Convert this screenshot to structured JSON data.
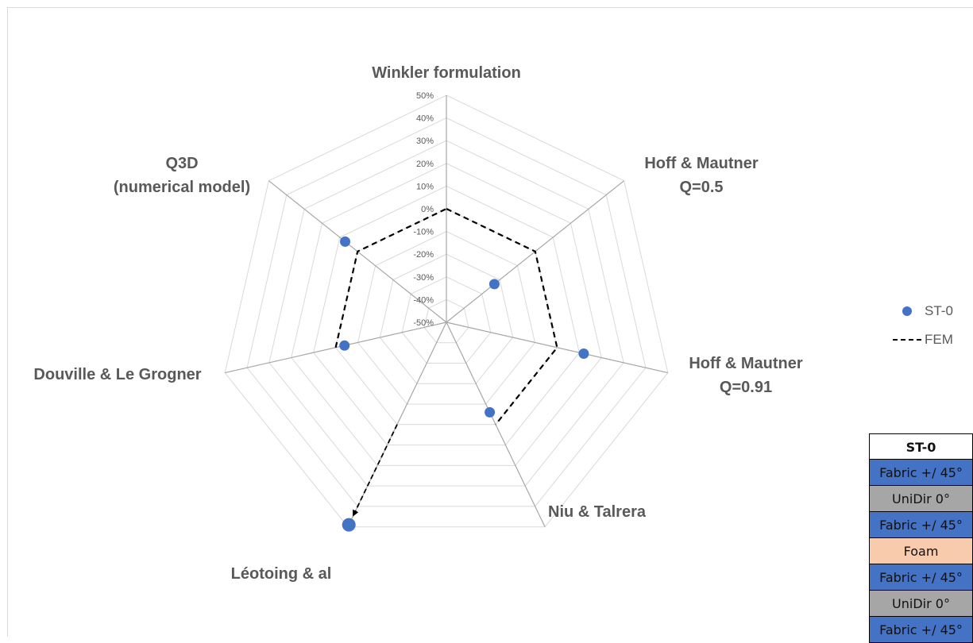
{
  "chart_data": {
    "type": "radar",
    "axes": [
      "Winkler formulation",
      "Hoff & Mautner\nQ=0.5",
      "Hoff & Mautner\nQ=0.91",
      "Niu & Talrera",
      "Léotoing & al",
      "Douville & Le Grogner",
      "Q3D\n(numerical model)"
    ],
    "rlim": [
      -50,
      50
    ],
    "ticks": [
      "50%",
      "40%",
      "30%",
      "20%",
      "10%",
      "0%",
      "-10%",
      "-20%",
      "-30%",
      "-40%",
      "-50%"
    ],
    "tick_values": [
      50,
      40,
      30,
      20,
      10,
      0,
      -10,
      -20,
      -30,
      -40,
      -50
    ],
    "series": [
      {
        "name": "ST-0",
        "style": "markers",
        "color": "#4472c4",
        "values": [
          null,
          -23,
          12,
          -6,
          49,
          -4,
          7
        ]
      },
      {
        "name": "FEM",
        "style": "dashed-line",
        "color": "#000000",
        "values": [
          0,
          0,
          0,
          0,
          null,
          0,
          0
        ]
      }
    ],
    "legend": "right",
    "grid": true
  },
  "legend": {
    "items": [
      {
        "label": "ST-0",
        "color": "#4472c4"
      },
      {
        "label": "FEM",
        "color": "#000000"
      }
    ]
  },
  "layup_table": {
    "header": "ST-0",
    "layers": [
      {
        "label": "Fabric +/ 45°",
        "color": "#4472c4"
      },
      {
        "label": "UniDir 0°",
        "color": "#a6a6a6"
      },
      {
        "label": "Fabric +/ 45°",
        "color": "#4472c4"
      },
      {
        "label": "Foam",
        "color": "#f8cbad"
      },
      {
        "label": "Fabric +/ 45°",
        "color": "#4472c4"
      },
      {
        "label": "UniDir 0°",
        "color": "#a6a6a6"
      },
      {
        "label": "Fabric +/ 45°",
        "color": "#4472c4"
      }
    ]
  }
}
